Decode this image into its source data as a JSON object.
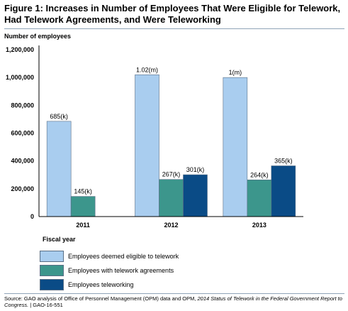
{
  "figure": {
    "title": "Figure 1: Increases in Number of Employees That Were Eligible for Telework, Had Telework Agreements, and Were Teleworking"
  },
  "chart_data": {
    "type": "bar",
    "title": "Figure 1: Increases in Number of Employees That Were Eligible for Telework, Had Telework Agreements, and Were Teleworking",
    "ylabel": "Number of employees",
    "xlabel": "Fiscal year",
    "ylim": [
      0,
      1200000
    ],
    "yticks": [
      0,
      200000,
      400000,
      600000,
      800000,
      1000000,
      1200000
    ],
    "ytick_labels": [
      "0",
      "200,000",
      "400,000",
      "600,000",
      "800,000",
      "1,000,000",
      "1,200,000"
    ],
    "categories": [
      "2011",
      "2012",
      "2013"
    ],
    "grid": false,
    "legend_position": "bottom",
    "series": [
      {
        "name": "Employees deemed eligible to telework",
        "color": "#a9cdef",
        "values": [
          685000,
          1020000,
          1000000
        ],
        "labels": [
          "685(k)",
          "1.02(m)",
          "1(m)"
        ]
      },
      {
        "name": "Employees with telework agreements",
        "color": "#3c968c",
        "values": [
          145000,
          267000,
          264000
        ],
        "labels": [
          "145(k)",
          "267(k)",
          "264(k)"
        ]
      },
      {
        "name": "Employees teleworking",
        "color": "#0a4b86",
        "values": [
          null,
          301000,
          365000
        ],
        "labels": [
          null,
          "301(k)",
          "365(k)"
        ]
      }
    ]
  },
  "source": {
    "prefix": "Source: GAO analysis of Office of Personnel Management (OPM) data and OPM, ",
    "italic": "2014 Status of Telework in the Federal Government Report to Congress.",
    "suffix": " | GAO-16-551"
  }
}
